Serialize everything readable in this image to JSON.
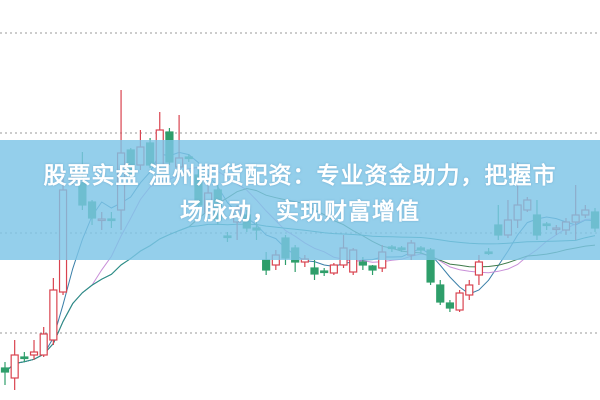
{
  "headline": {
    "line1": "股票实盘 温州期货配资：专业资金助力，把握市",
    "line2": "场脉动，实现财富增值"
  },
  "colors": {
    "up": "#d9434f",
    "down": "#2e9e6a",
    "banner": "#7dc5e6",
    "grid": "#999999",
    "ma": [
      "#3a7fa8",
      "#c98fd8",
      "#3f7a4a",
      "#2b8f8f"
    ]
  },
  "chart_data": {
    "type": "candlestick",
    "ylim": [
      0,
      400
    ],
    "gridlines": [
      67,
      167,
      267,
      367
    ],
    "grid": true,
    "moving_averages": [
      5,
      10,
      20,
      60
    ],
    "ohlc": [
      [
        32,
        28,
        38,
        15
      ],
      [
        22,
        45,
        60,
        10
      ],
      [
        43,
        42,
        48,
        38
      ],
      [
        45,
        48,
        60,
        40
      ],
      [
        45,
        66,
        73,
        43
      ],
      [
        60,
        110,
        122,
        55
      ],
      [
        108,
        210,
        230,
        105
      ],
      [
        220,
        222,
        228,
        215
      ],
      [
        217,
        195,
        248,
        190
      ],
      [
        198,
        182,
        200,
        175
      ],
      [
        180,
        181,
        188,
        170
      ],
      [
        181,
        180,
        188,
        172
      ],
      [
        190,
        247,
        310,
        170
      ],
      [
        250,
        225,
        252,
        222
      ],
      [
        235,
        253,
        270,
        230
      ],
      [
        257,
        235,
        262,
        232
      ],
      [
        235,
        270,
        288,
        230
      ],
      [
        268,
        238,
        272,
        235
      ],
      [
        233,
        242,
        285,
        225
      ],
      [
        243,
        242,
        246,
        238
      ],
      [
        225,
        195,
        230,
        190
      ],
      [
        188,
        207,
        215,
        185
      ],
      [
        210,
        180,
        215,
        175
      ],
      [
        164,
        163,
        168,
        158
      ],
      [
        178,
        190,
        195,
        160
      ],
      [
        185,
        172,
        190,
        168
      ],
      [
        172,
        170,
        180,
        160
      ],
      [
        140,
        130,
        148,
        125
      ],
      [
        135,
        145,
        150,
        130
      ],
      [
        162,
        142,
        165,
        135
      ],
      [
        152,
        138,
        155,
        128
      ],
      [
        138,
        141,
        145,
        133
      ],
      [
        132,
        126,
        140,
        120
      ],
      [
        129,
        128,
        132,
        124
      ],
      [
        127,
        135,
        137,
        125
      ],
      [
        135,
        152,
        165,
        132
      ],
      [
        128,
        150,
        152,
        125
      ],
      [
        138,
        135,
        143,
        130
      ],
      [
        134,
        130,
        135,
        125
      ],
      [
        132,
        148,
        155,
        128
      ],
      [
        153,
        152,
        155,
        148
      ],
      [
        152,
        151,
        154,
        148
      ],
      [
        145,
        157,
        160,
        140
      ],
      [
        152,
        150,
        154,
        146
      ],
      [
        150,
        118,
        152,
        115
      ],
      [
        115,
        98,
        120,
        95
      ],
      [
        97,
        92,
        100,
        88
      ],
      [
        90,
        107,
        110,
        88
      ],
      [
        105,
        115,
        120,
        100
      ],
      [
        125,
        138,
        145,
        115
      ],
      [
        148,
        147,
        152,
        145
      ],
      [
        175,
        165,
        195,
        160
      ],
      [
        165,
        180,
        200,
        162
      ],
      [
        180,
        195,
        238,
        172
      ],
      [
        190,
        200,
        203,
        188
      ],
      [
        185,
        165,
        200,
        160
      ],
      [
        176,
        175,
        178,
        170
      ],
      [
        172,
        172,
        175,
        165
      ],
      [
        170,
        178,
        182,
        165
      ],
      [
        178,
        185,
        215,
        160
      ],
      [
        185,
        190,
        195,
        182
      ],
      [
        188,
        172,
        192,
        168
      ]
    ]
  }
}
